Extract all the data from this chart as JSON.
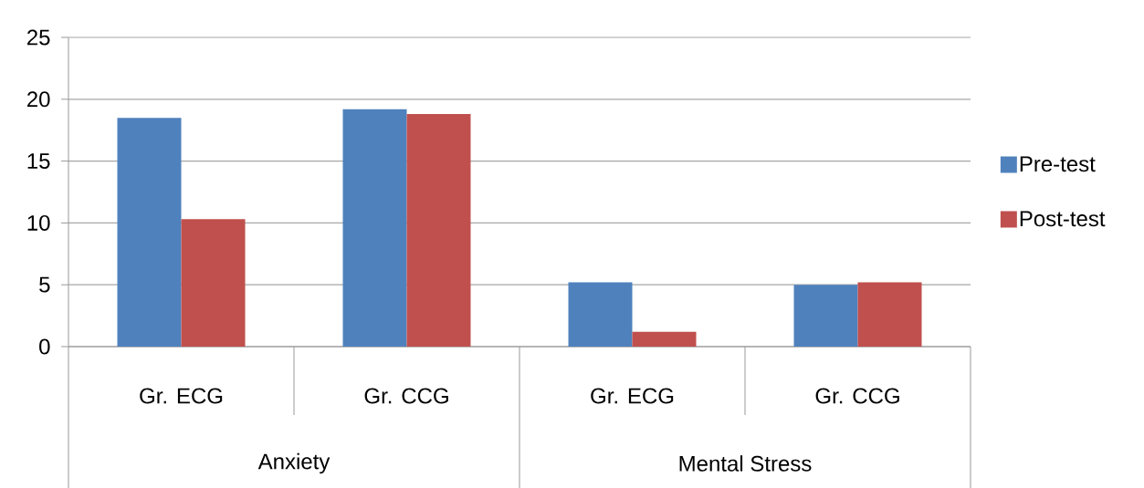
{
  "chart_data": {
    "type": "bar",
    "categories": [
      "Gr. ECG",
      "Gr. CCG",
      "Gr. ECG",
      "Gr. CCG"
    ],
    "series": [
      {
        "name": "Pre-test",
        "color": "#4f81bd",
        "values": [
          18.5,
          19.2,
          5.2,
          5.0
        ]
      },
      {
        "name": "Post-test",
        "color": "#c0504d",
        "values": [
          10.3,
          18.8,
          1.2,
          5.2
        ]
      }
    ],
    "annotations": [
      "Anxiety",
      "Mental Stress"
    ],
    "ylim": [
      0,
      25
    ],
    "yticks": [
      0,
      5,
      10,
      15,
      20,
      25
    ],
    "grid": "y",
    "legend": "right"
  }
}
